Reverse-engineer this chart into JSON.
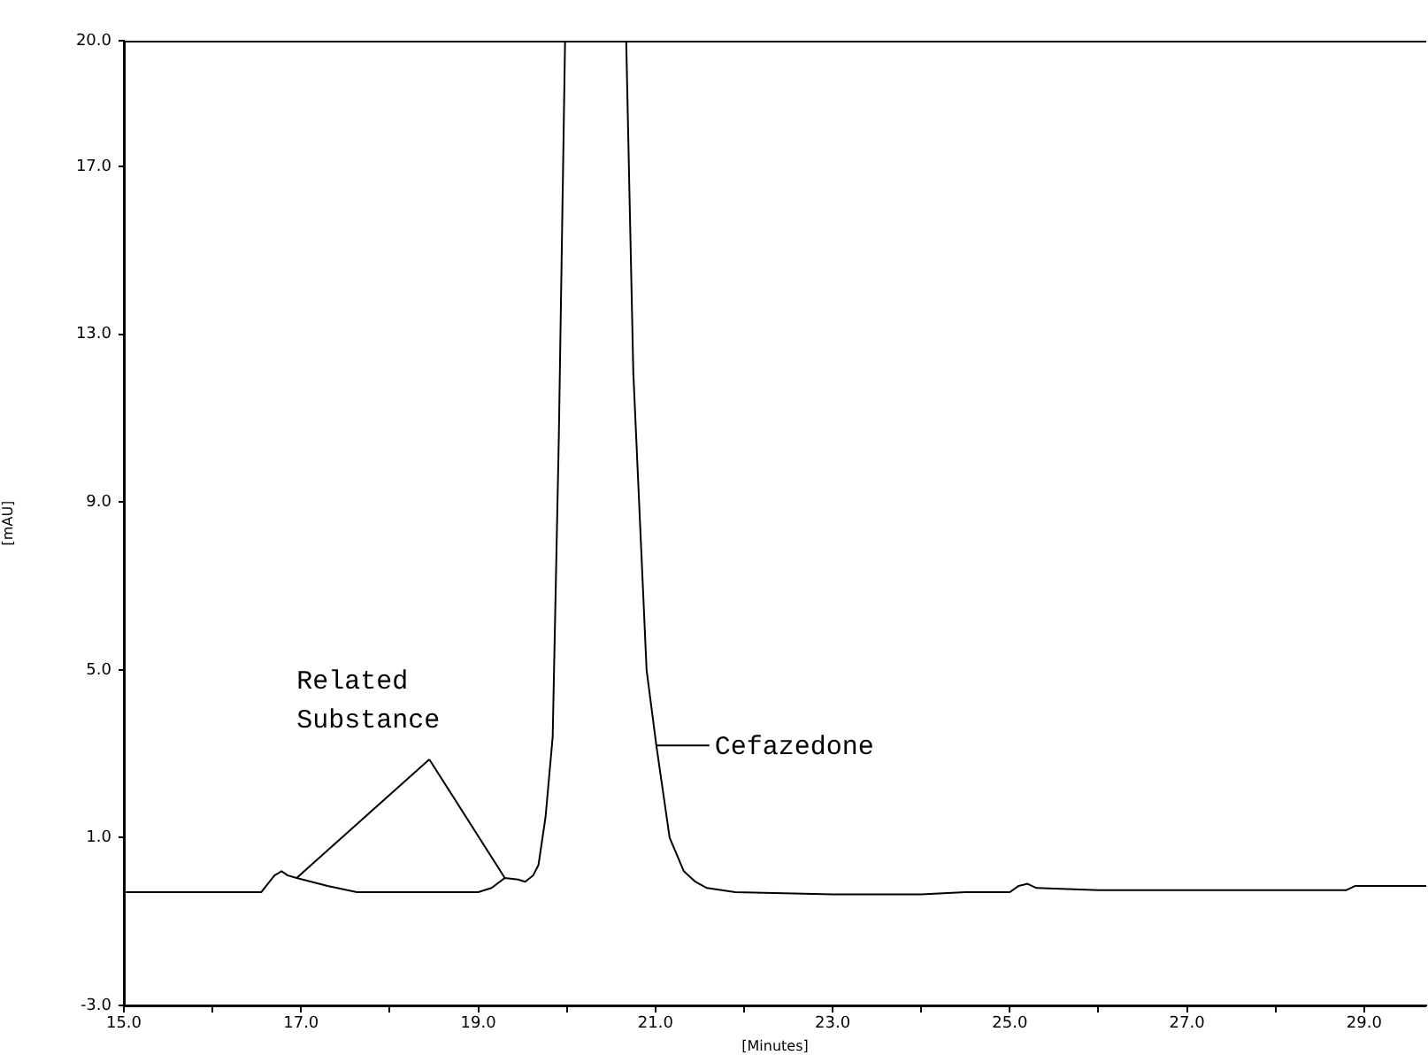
{
  "chart_data": {
    "type": "line",
    "xlabel": "[Minutes]",
    "ylabel": "[mAU]",
    "xlim": [
      15,
      29.7
    ],
    "ylim": [
      -3,
      20
    ],
    "xticks": [
      {
        "value": 15,
        "label": "15.0"
      },
      {
        "value": 16,
        "label": null
      },
      {
        "value": 17,
        "label": "17.0"
      },
      {
        "value": 18,
        "label": null
      },
      {
        "value": 19,
        "label": "19.0"
      },
      {
        "value": 20,
        "label": null
      },
      {
        "value": 21,
        "label": "21.0"
      },
      {
        "value": 22,
        "label": null
      },
      {
        "value": 23,
        "label": "23.0"
      },
      {
        "value": 24,
        "label": null
      },
      {
        "value": 25,
        "label": "25.0"
      },
      {
        "value": 26,
        "label": null
      },
      {
        "value": 27,
        "label": "27.0"
      },
      {
        "value": 28,
        "label": null
      },
      {
        "value": 29,
        "label": "29.0"
      }
    ],
    "yticks": [
      {
        "value": -3,
        "label": "-3.0"
      },
      {
        "value": 1,
        "label": "1.0"
      },
      {
        "value": 5,
        "label": "5.0"
      },
      {
        "value": 9,
        "label": "9.0"
      },
      {
        "value": 13,
        "label": "13.0"
      },
      {
        "value": 17,
        "label": "17.0"
      },
      {
        "value": 20,
        "label": "20.0"
      }
    ],
    "grid": false,
    "legend": false,
    "marker": "none",
    "line_style": "solid",
    "series": [
      {
        "color": "#000000",
        "x": [
          15.0,
          15.5,
          16.55,
          16.7,
          16.78,
          16.85,
          16.95,
          17.3,
          17.63,
          18.5,
          19.0,
          19.15,
          19.3,
          19.45,
          19.53,
          19.62,
          19.68,
          19.76,
          19.84,
          19.91,
          19.98,
          20.67,
          20.75,
          20.9,
          21.01,
          21.16,
          21.32,
          21.45,
          21.58,
          21.9,
          23.0,
          24.0,
          24.5,
          25.0,
          25.1,
          25.2,
          25.3,
          26.0,
          27.9,
          28.8,
          28.9,
          29.7
        ],
        "values": [
          -0.3,
          -0.3,
          -0.3,
          0.1,
          0.2,
          0.1,
          0.04,
          -0.15,
          -0.3,
          -0.3,
          -0.3,
          -0.2,
          0.04,
          0.0,
          -0.05,
          0.1,
          0.35,
          1.5,
          3.4,
          10.6,
          20.0,
          20.0,
          12.1,
          5.0,
          3.2,
          1.0,
          0.2,
          -0.05,
          -0.2,
          -0.3,
          -0.35,
          -0.35,
          -0.3,
          -0.3,
          -0.15,
          -0.1,
          -0.2,
          -0.25,
          -0.25,
          -0.25,
          -0.15,
          -0.15
        ]
      }
    ],
    "annotations": [
      {
        "text": "Related Substance",
        "x": 16.95,
        "y": 0.04
      },
      {
        "text": "Cefazedone",
        "x": 21.01,
        "y": 3.2
      }
    ]
  }
}
